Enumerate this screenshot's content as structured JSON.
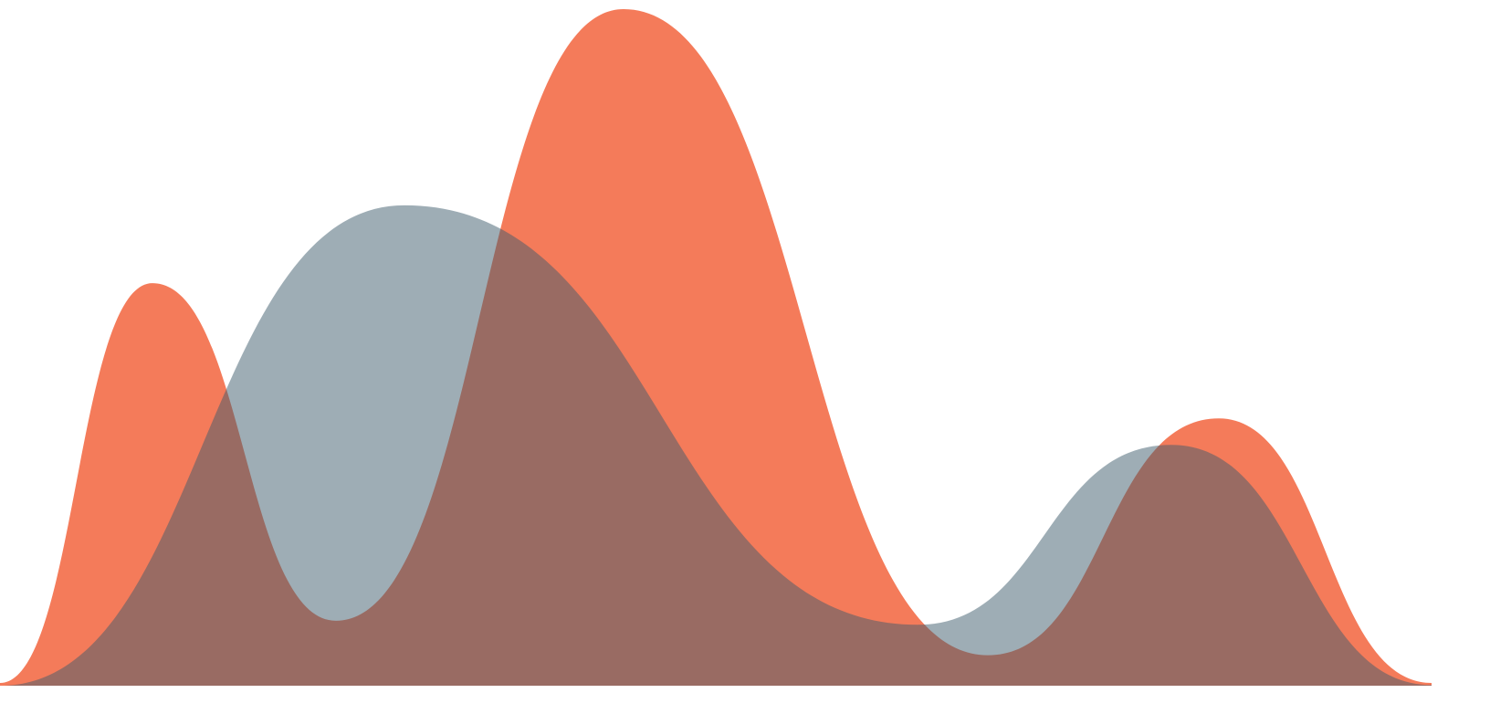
{
  "chart_data": {
    "type": "area",
    "xlim": [
      0,
      1568
    ],
    "ylim": [
      0,
      100
    ],
    "series": [
      {
        "color": "#f47b5a",
        "opacity": 1,
        "x": [
          0,
          167,
          368,
          683,
          1082,
          1335,
          1568
        ],
        "values": [
          0.4,
          59.5,
          9.6,
          100,
          4.5,
          39.5,
          0.4
        ]
      },
      {
        "color": "#3d5b6b",
        "opacity": 0.5,
        "x": [
          0,
          443,
          1005,
          1283,
          1568
        ],
        "values": [
          0,
          71,
          9,
          35.6,
          0.1
        ]
      }
    ]
  }
}
